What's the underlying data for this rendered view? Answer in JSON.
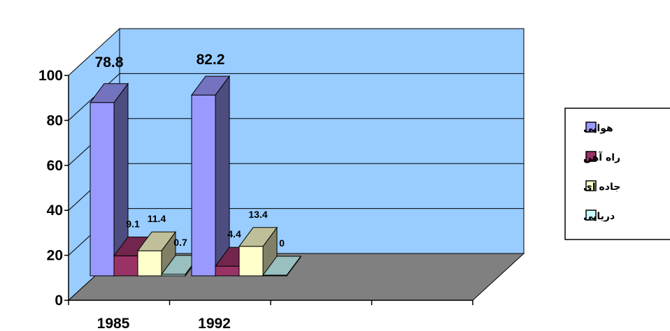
{
  "chart_data": {
    "type": "bar",
    "categories": [
      "1985",
      "1992"
    ],
    "series": [
      {
        "name": "هوایی",
        "values": [
          78.8,
          82.2
        ],
        "color": "#9999ff"
      },
      {
        "name": "راه آهن",
        "values": [
          9.1,
          4.4
        ],
        "color": "#993366"
      },
      {
        "name": "جاده ای",
        "values": [
          11.4,
          13.4
        ],
        "color": "#ffffcc"
      },
      {
        "name": "دریایی",
        "values": [
          0.7,
          0
        ],
        "color": "#ccffff"
      }
    ],
    "data_labels": [
      [
        "78.8",
        "82.2"
      ],
      [
        "9.1",
        "4.4"
      ],
      [
        "11.4",
        "13.4"
      ],
      [
        "0.7",
        "0"
      ]
    ],
    "yticks": [
      "0",
      "20",
      "40",
      "60",
      "80",
      "100"
    ],
    "ylim": [
      0,
      100
    ],
    "title": "",
    "xlabel": "",
    "ylabel": "",
    "legend_position": "right",
    "grid": true,
    "colors": {
      "back_wall": "#99ccff",
      "floor": "#808080",
      "grid": "#000000"
    }
  }
}
